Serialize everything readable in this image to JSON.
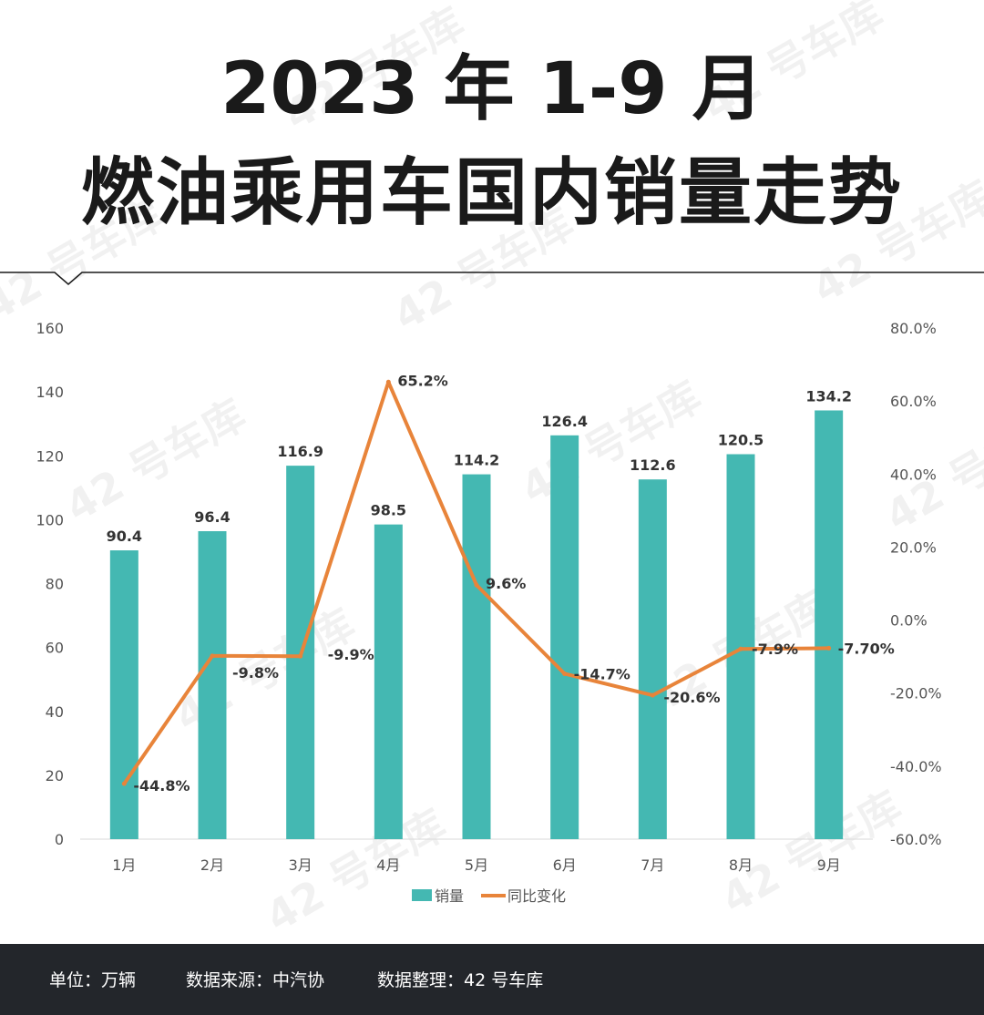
{
  "title": {
    "line1": "2023 年 1-9 月",
    "line2": "燃油乘用车国内销量走势"
  },
  "watermark": "42 号车库",
  "footer": {
    "unit": "单位：万辆",
    "source": "数据来源：中汽协",
    "compiler": "数据整理：42 号车库"
  },
  "colors": {
    "bar": "#44b8b2",
    "line": "#e8843a",
    "text": "#333333",
    "axis_text": "#555555",
    "footer_bg": "#23262b"
  },
  "chart_data": {
    "type": "bar",
    "categories": [
      "1月",
      "2月",
      "3月",
      "4月",
      "5月",
      "6月",
      "7月",
      "8月",
      "9月"
    ],
    "series": [
      {
        "name": "销量",
        "type": "bar",
        "axis": "left",
        "values": [
          90.4,
          96.4,
          116.9,
          98.5,
          114.2,
          126.4,
          112.6,
          120.5,
          134.2
        ],
        "labels": [
          "90.4",
          "96.4",
          "116.9",
          "98.5",
          "114.2",
          "126.4",
          "112.6",
          "120.5",
          "134.2"
        ]
      },
      {
        "name": "同比变化",
        "type": "line",
        "axis": "right",
        "values": [
          -44.8,
          -9.8,
          -9.9,
          65.2,
          9.6,
          -14.7,
          -20.6,
          -7.9,
          -7.7
        ],
        "labels": [
          "-44.8%",
          "-9.8%",
          "-9.9%",
          "65.2%",
          "9.6%",
          "-14.7%",
          "-20.6%",
          "-7.9%",
          "-7.70%"
        ]
      }
    ],
    "y_left": {
      "range": [
        0,
        160
      ],
      "ticks": [
        "0",
        "20",
        "40",
        "60",
        "80",
        "100",
        "120",
        "140",
        "160"
      ]
    },
    "y_right": {
      "range": [
        -60,
        80
      ],
      "ticks": [
        "-60.0%",
        "-40.0%",
        "-20.0%",
        "0.0%",
        "20.0%",
        "40.0%",
        "60.0%",
        "80.0%"
      ]
    },
    "legend": [
      "销量",
      "同比变化"
    ],
    "legend_position": "bottom",
    "grid": false
  }
}
